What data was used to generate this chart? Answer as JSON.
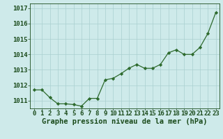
{
  "x": [
    0,
    1,
    2,
    3,
    4,
    5,
    6,
    7,
    8,
    9,
    10,
    11,
    12,
    13,
    14,
    15,
    16,
    17,
    18,
    19,
    20,
    21,
    22,
    23
  ],
  "y": [
    1011.7,
    1011.7,
    1011.2,
    1010.8,
    1010.8,
    1010.75,
    1010.65,
    1011.15,
    1011.15,
    1012.35,
    1012.45,
    1012.75,
    1013.1,
    1013.35,
    1013.1,
    1013.1,
    1013.35,
    1014.1,
    1014.3,
    1014.0,
    1014.0,
    1014.45,
    1015.35,
    1016.7
  ],
  "line_color": "#2d6a2d",
  "marker": "D",
  "marker_size": 2.2,
  "bg_color": "#ceeaea",
  "grid_color": "#aacfcf",
  "xlabel": "Graphe pression niveau de la mer (hPa)",
  "xlabel_color": "#1a4a1a",
  "xlabel_fontsize": 7.5,
  "tick_color": "#1a4a1a",
  "tick_fontsize": 6.5,
  "ylim": [
    1010.5,
    1017.3
  ],
  "yticks": [
    1011,
    1012,
    1013,
    1014,
    1015,
    1016,
    1017
  ],
  "xticks": [
    0,
    1,
    2,
    3,
    4,
    5,
    6,
    7,
    8,
    9,
    10,
    11,
    12,
    13,
    14,
    15,
    16,
    17,
    18,
    19,
    20,
    21,
    22,
    23
  ]
}
